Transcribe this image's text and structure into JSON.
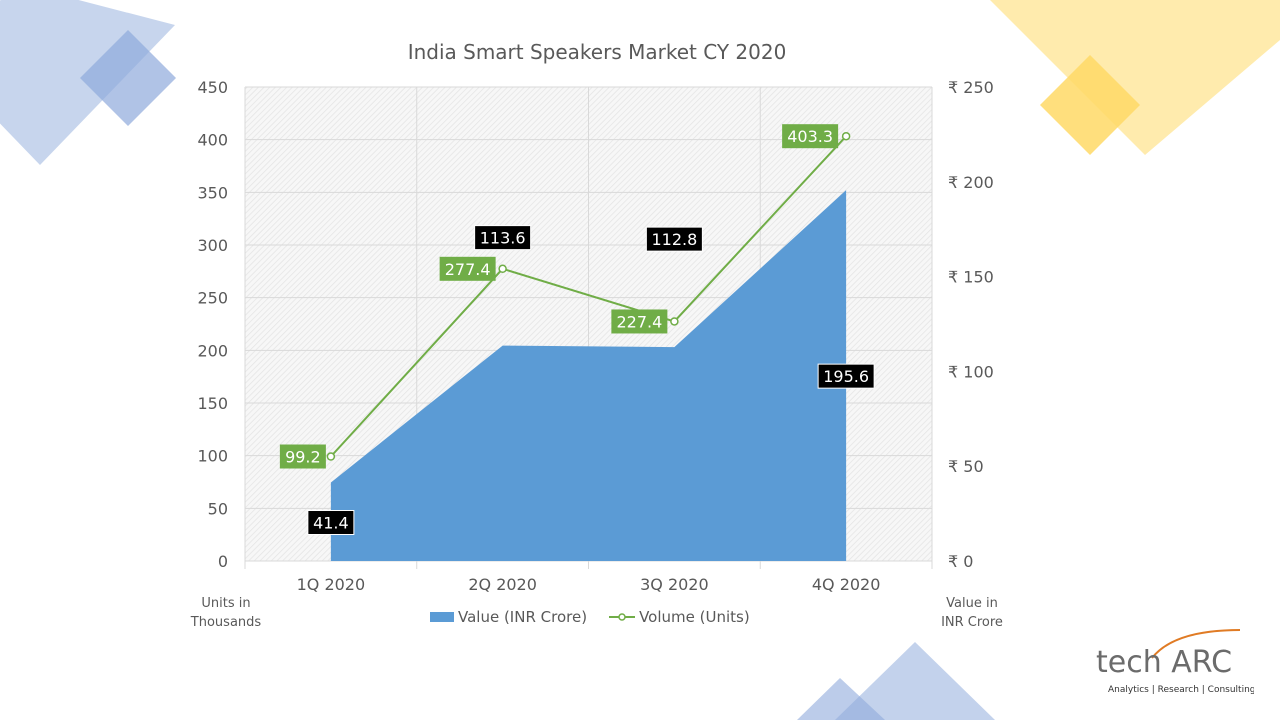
{
  "chart_data": {
    "type": "area+line",
    "title": "India Smart Speakers Market CY 2020",
    "categories": [
      "1Q 2020",
      "2Q 2020",
      "3Q 2020",
      "4Q 2020"
    ],
    "series": [
      {
        "name": "Value (INR Crore)",
        "type": "area",
        "axis": "right",
        "values": [
          41.4,
          113.6,
          112.8,
          195.6
        ],
        "color": "#5b9bd5",
        "label_bg": "#000000"
      },
      {
        "name": "Volume (Units)",
        "type": "line",
        "axis": "left",
        "values": [
          99.2,
          277.4,
          227.4,
          403.3
        ],
        "color": "#70ad47",
        "label_bg": "#70ad47"
      }
    ],
    "left_axis": {
      "label": "Units in Thousands",
      "label_lines": [
        "Units in",
        "Thousands"
      ],
      "ylim": [
        0,
        450
      ],
      "ticks": [
        "0",
        "50",
        "100",
        "150",
        "200",
        "250",
        "300",
        "350",
        "400",
        "450"
      ]
    },
    "right_axis": {
      "label": "Value in INR Crore",
      "label_lines": [
        "Value in",
        "INR Crore"
      ],
      "ylim": [
        0,
        250
      ],
      "ticks": [
        "₹ 0",
        "₹ 50",
        "₹ 100",
        "₹ 150",
        "₹ 200",
        "₹ 250"
      ]
    },
    "grid": true,
    "legend": "bottom"
  },
  "logo": {
    "name": "tech ARC",
    "tagline": "Analytics | Research | Consulting"
  }
}
